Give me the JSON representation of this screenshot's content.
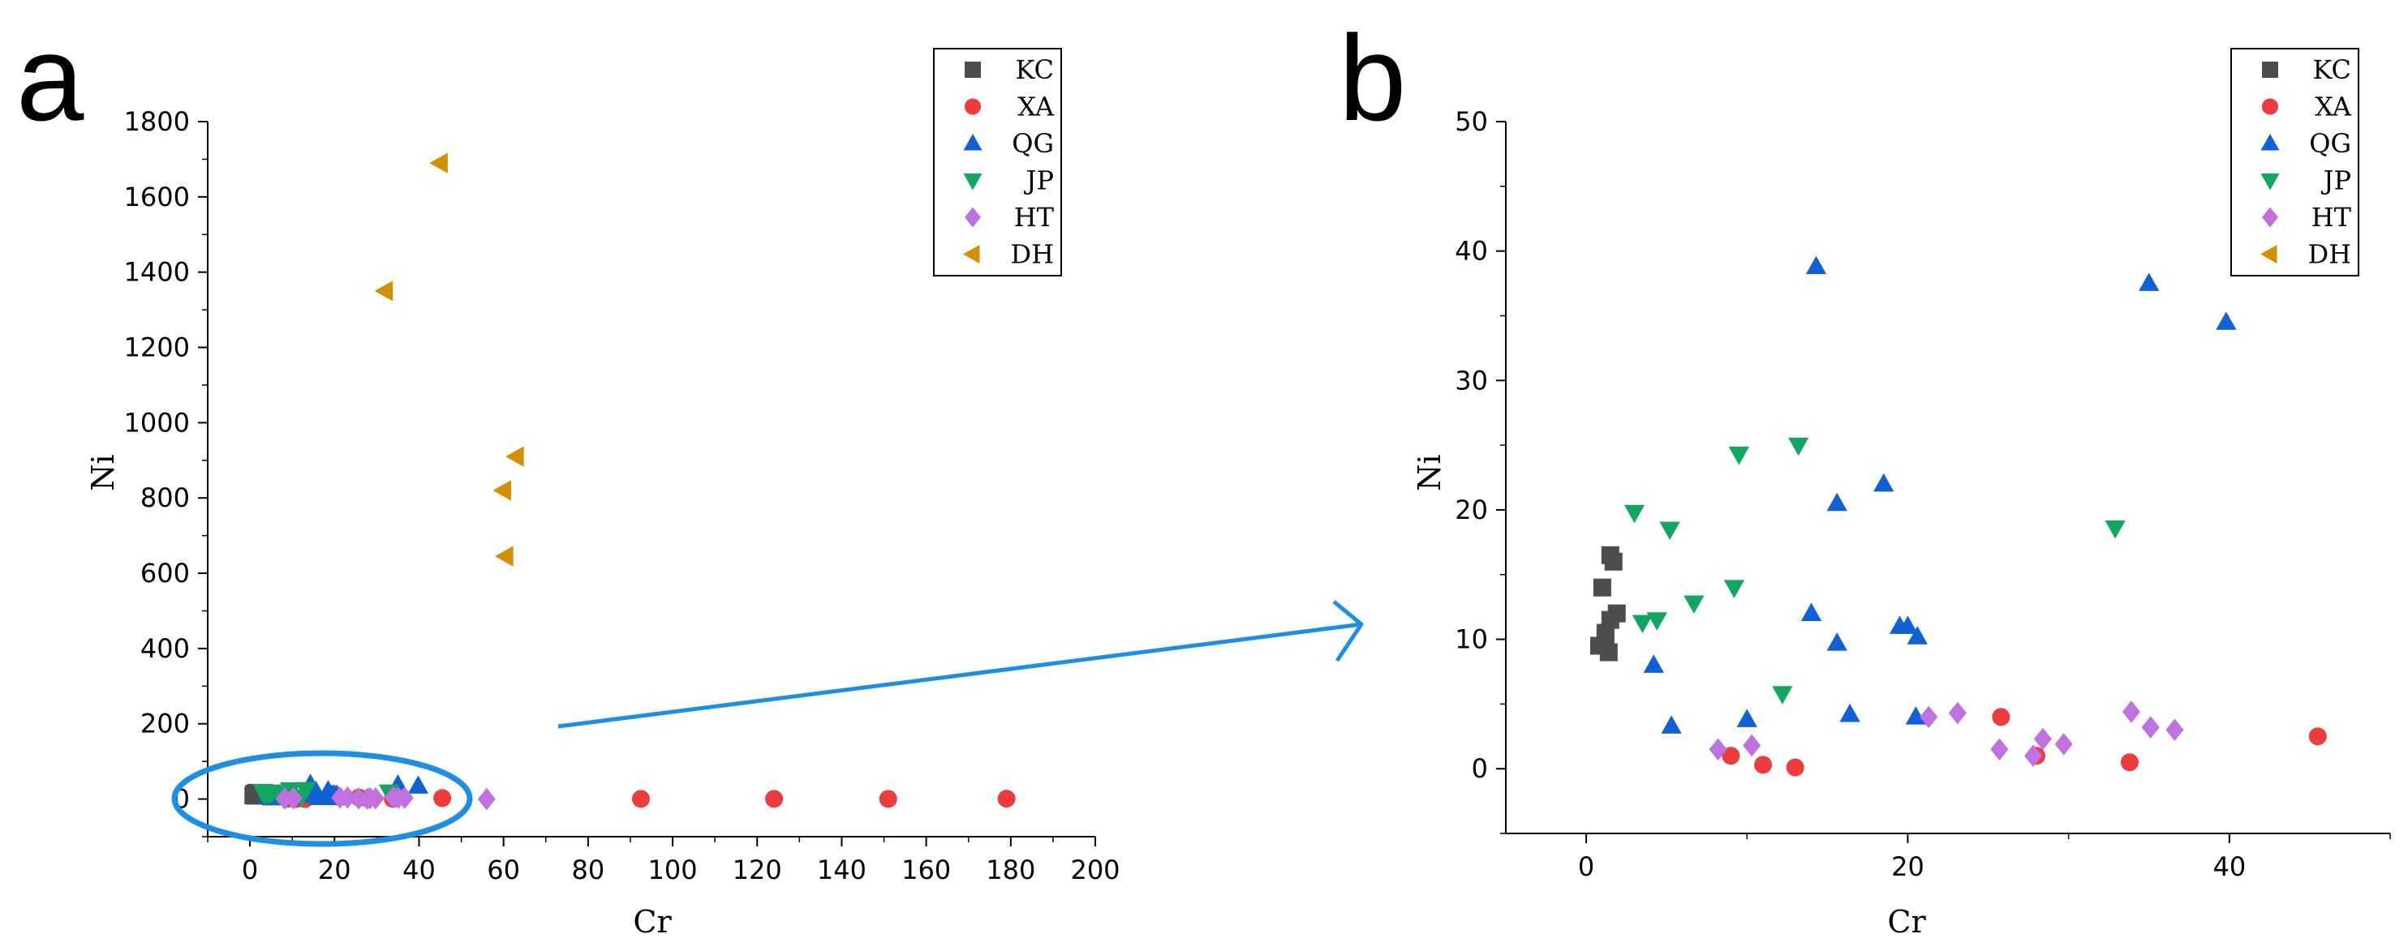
{
  "colors": {
    "KC": "#4d4d4d",
    "XA": "#ee3b3b",
    "QG": "#1060d8",
    "JP": "#10a860",
    "HT": "#c070e0",
    "DH": "#d49000",
    "highlight": "#1a8fe8"
  },
  "chart_data": [
    {
      "id": "a",
      "panel_label": "a",
      "type": "scatter",
      "xlabel": "Cr",
      "ylabel": "Ni",
      "xlim": [
        -10,
        200
      ],
      "ylim": [
        -100,
        1800
      ],
      "xticks": [
        0,
        20,
        40,
        60,
        80,
        100,
        120,
        140,
        160,
        180,
        200
      ],
      "yticks": [
        0,
        200,
        400,
        600,
        800,
        1000,
        1200,
        1400,
        1600,
        1800
      ],
      "legend": {
        "position": "top-right",
        "entries": [
          "KC",
          "XA",
          "QG",
          "JP",
          "HT",
          "DH"
        ]
      },
      "annotation": "blue ellipse around the low-value cluster with an arrow pointing to panel b",
      "series": [
        {
          "name": "KC",
          "marker": "square",
          "points": [
            [
              0.8,
              9.5
            ],
            [
              1,
              14
            ],
            [
              1.2,
              10
            ],
            [
              1.4,
              9
            ],
            [
              1.5,
              11.5
            ],
            [
              1.5,
              16.5
            ],
            [
              1.7,
              16
            ],
            [
              1.9,
              12
            ],
            [
              1.2,
              10.5
            ]
          ]
        },
        {
          "name": "XA",
          "marker": "circle",
          "points": [
            [
              9,
              1
            ],
            [
              11,
              0.3
            ],
            [
              13,
              0.1
            ],
            [
              25.8,
              4
            ],
            [
              28,
              1
            ],
            [
              33.8,
              0.5
            ],
            [
              45.5,
              2.5
            ],
            [
              92.5,
              0.5
            ],
            [
              124,
              0.5
            ],
            [
              151,
              0.5
            ],
            [
              179,
              1
            ]
          ]
        },
        {
          "name": "QG",
          "marker": "triangle-up",
          "points": [
            [
              14.3,
              38.8
            ],
            [
              35,
              37.5
            ],
            [
              39.8,
              34.5
            ],
            [
              18.5,
              22
            ],
            [
              15.6,
              20.5
            ],
            [
              14,
              12
            ],
            [
              19.5,
              11
            ],
            [
              20,
              11
            ],
            [
              20.6,
              10.2
            ],
            [
              15.6,
              9.7
            ],
            [
              4.2,
              8
            ],
            [
              10,
              3.8
            ],
            [
              16.4,
              4.2
            ],
            [
              20.5,
              4
            ],
            [
              5.3,
              3.3
            ]
          ]
        },
        {
          "name": "JP",
          "marker": "triangle-down",
          "points": [
            [
              13.2,
              25
            ],
            [
              9.5,
              24.3
            ],
            [
              3,
              19.8
            ],
            [
              5.2,
              18.5
            ],
            [
              32.9,
              18.6
            ],
            [
              9.2,
              14
            ],
            [
              6.7,
              12.8
            ],
            [
              4.4,
              11.5
            ],
            [
              3.5,
              11.3
            ],
            [
              12.2,
              5.8
            ]
          ]
        },
        {
          "name": "HT",
          "marker": "diamond",
          "points": [
            [
              21.3,
              4
            ],
            [
              23.1,
              4.3
            ],
            [
              33.9,
              4.4
            ],
            [
              35.1,
              3.2
            ],
            [
              36.6,
              3
            ],
            [
              28.4,
              2.3
            ],
            [
              29.7,
              1.9
            ],
            [
              10.3,
              1.8
            ],
            [
              8.2,
              1.5
            ],
            [
              25.7,
              1.5
            ],
            [
              27.8,
              1
            ],
            [
              56,
              0
            ]
          ]
        },
        {
          "name": "DH",
          "marker": "triangle-left",
          "points": [
            [
              45,
              1690
            ],
            [
              32,
              1350
            ],
            [
              63,
              910
            ],
            [
              60,
              820
            ],
            [
              60.5,
              645
            ]
          ]
        }
      ]
    },
    {
      "id": "b",
      "panel_label": "b",
      "type": "scatter",
      "xlabel": "Cr",
      "ylabel": "Ni",
      "xlim": [
        -5,
        50
      ],
      "ylim": [
        -5,
        50
      ],
      "xticks": [
        0,
        20,
        40
      ],
      "yticks": [
        0,
        10,
        20,
        30,
        40,
        50
      ],
      "legend": {
        "position": "top-right",
        "entries": [
          "KC",
          "XA",
          "QG",
          "JP",
          "HT",
          "DH"
        ]
      },
      "series": [
        {
          "name": "KC",
          "marker": "square",
          "points": [
            [
              0.8,
              9.5
            ],
            [
              1,
              14
            ],
            [
              1.2,
              10
            ],
            [
              1.4,
              9
            ],
            [
              1.5,
              11.5
            ],
            [
              1.5,
              16.5
            ],
            [
              1.7,
              16
            ],
            [
              1.9,
              12
            ],
            [
              1.2,
              10.5
            ]
          ]
        },
        {
          "name": "XA",
          "marker": "circle",
          "points": [
            [
              9,
              1
            ],
            [
              11,
              0.3
            ],
            [
              13,
              0.1
            ],
            [
              25.8,
              4
            ],
            [
              28,
              1
            ],
            [
              33.8,
              0.5
            ],
            [
              45.5,
              2.5
            ]
          ]
        },
        {
          "name": "QG",
          "marker": "triangle-up",
          "points": [
            [
              14.3,
              38.8
            ],
            [
              35,
              37.5
            ],
            [
              39.8,
              34.5
            ],
            [
              18.5,
              22
            ],
            [
              15.6,
              20.5
            ],
            [
              14,
              12
            ],
            [
              19.5,
              11
            ],
            [
              20,
              11
            ],
            [
              20.6,
              10.2
            ],
            [
              15.6,
              9.7
            ],
            [
              4.2,
              8
            ],
            [
              10,
              3.8
            ],
            [
              16.4,
              4.2
            ],
            [
              20.5,
              4
            ],
            [
              5.3,
              3.3
            ]
          ]
        },
        {
          "name": "JP",
          "marker": "triangle-down",
          "points": [
            [
              13.2,
              25
            ],
            [
              9.5,
              24.3
            ],
            [
              3,
              19.8
            ],
            [
              5.2,
              18.5
            ],
            [
              32.9,
              18.6
            ],
            [
              9.2,
              14
            ],
            [
              6.7,
              12.8
            ],
            [
              4.4,
              11.5
            ],
            [
              3.5,
              11.3
            ],
            [
              12.2,
              5.8
            ]
          ]
        },
        {
          "name": "HT",
          "marker": "diamond",
          "points": [
            [
              21.3,
              4
            ],
            [
              23.1,
              4.3
            ],
            [
              33.9,
              4.4
            ],
            [
              35.1,
              3.2
            ],
            [
              36.6,
              3
            ],
            [
              28.4,
              2.3
            ],
            [
              29.7,
              1.9
            ],
            [
              10.3,
              1.8
            ],
            [
              8.2,
              1.5
            ],
            [
              25.7,
              1.5
            ],
            [
              27.8,
              1
            ]
          ]
        },
        {
          "name": "DH",
          "marker": "triangle-left",
          "points": []
        }
      ]
    }
  ]
}
